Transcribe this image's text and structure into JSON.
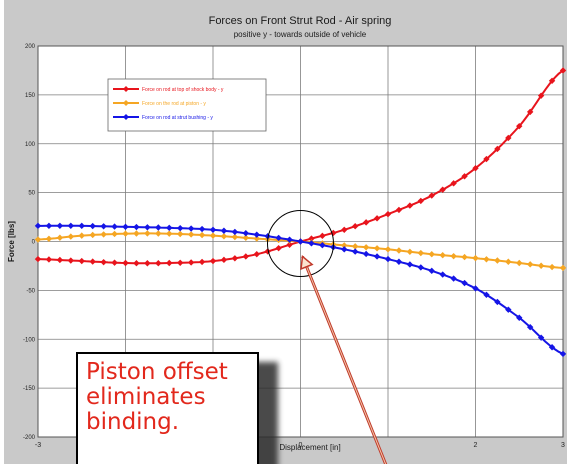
{
  "colors": {
    "panel": "#c9c9c9",
    "plot": "#ffffff",
    "grid": "#7d7d7d",
    "arrow": "#c0392b",
    "callout_text": "#e2281c"
  },
  "callout": {
    "text": "Piston offset\neliminates\nbinding."
  },
  "chart_data": {
    "type": "line",
    "title": "Forces on Front Strut Rod - Air spring",
    "subtitle": "positive y - towards outside of vehicle",
    "xlabel": "Displacement [in]",
    "ylabel": "Force [lbs]",
    "xlim": [
      -3,
      3
    ],
    "ylim": [
      -200,
      200
    ],
    "xticks": [
      -3,
      -2,
      -1,
      0,
      1,
      2,
      3
    ],
    "yticks": [
      -200,
      -150,
      -100,
      -50,
      0,
      50,
      100,
      150,
      200
    ],
    "xtick_labels": [
      "-3",
      "",
      "",
      "0",
      "",
      "2",
      "3"
    ],
    "ytick_labels": [
      "-200",
      "-150",
      "-100",
      "-50",
      "0",
      "50",
      "100",
      "150",
      "200"
    ],
    "grid": true,
    "legend_position": "top-left",
    "x": [
      -3.0,
      -2.5,
      -2.0,
      -1.5,
      -1.0,
      -0.5,
      0.0,
      0.5,
      1.0,
      1.5,
      2.0,
      2.5,
      3.0
    ],
    "series": [
      {
        "name": "Force on rod at top of shock body - y",
        "color": "#e8141c",
        "values": [
          -18,
          -20,
          -22,
          -22,
          -20,
          -13,
          0,
          12,
          28,
          47,
          75,
          118,
          175
        ]
      },
      {
        "name": "Force on the rod at piston - y",
        "color": "#f5a623",
        "values": [
          2,
          6,
          8,
          8,
          6,
          3,
          0,
          -4,
          -8,
          -13,
          -17,
          -22,
          -27
        ]
      },
      {
        "name": "Force on rod at strut bushing - y",
        "color": "#1515e6",
        "values": [
          16,
          16,
          15,
          14,
          12,
          7,
          0,
          -8,
          -18,
          -30,
          -48,
          -78,
          -115
        ]
      }
    ]
  }
}
